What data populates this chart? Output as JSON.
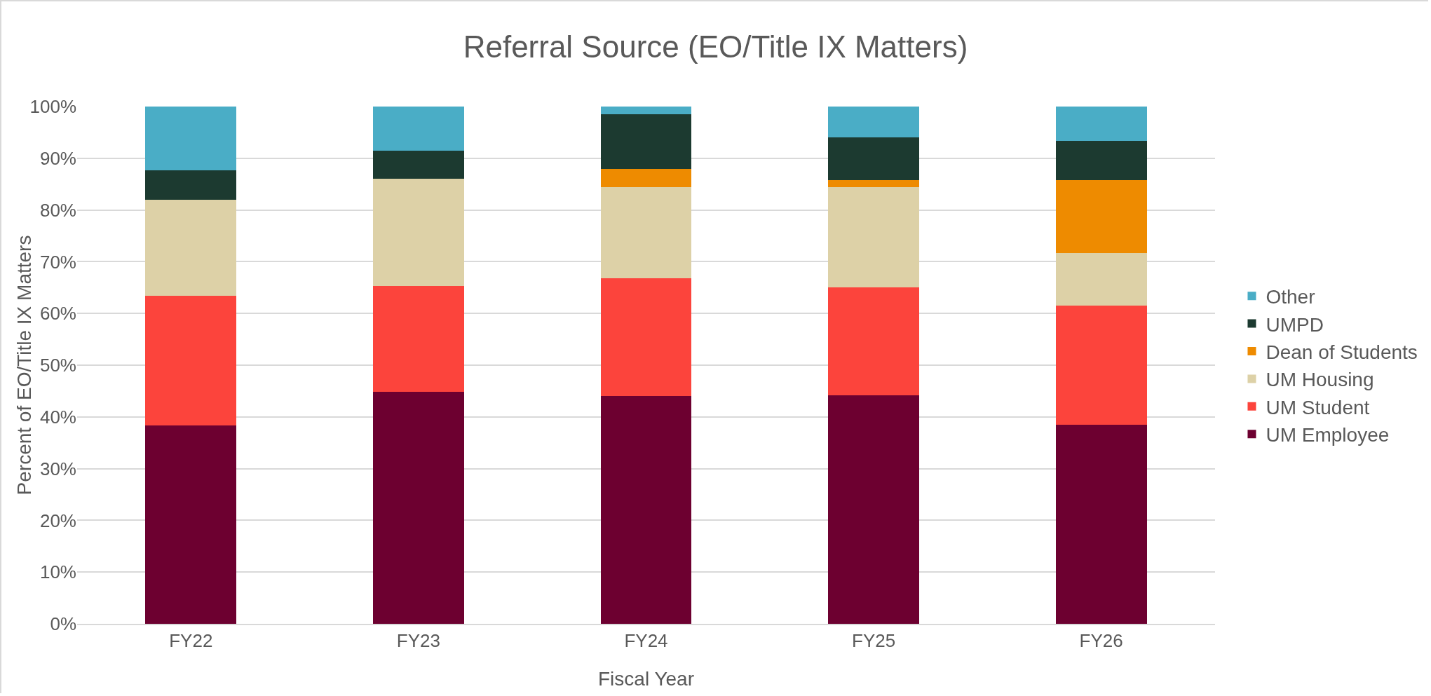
{
  "chart_data": {
    "type": "bar",
    "title": "Referral Source (EO/Title IX Matters)",
    "xlabel": "Fiscal Year",
    "ylabel": "Percent of EO/Title IX Matters",
    "categories": [
      "FY22",
      "FY23",
      "FY24",
      "FY25",
      "FY26"
    ],
    "stacked": true,
    "series": [
      {
        "name": "UM Employee",
        "color": "#6d0030",
        "values": [
          38.3,
          44.8,
          44.0,
          44.2,
          38.5
        ]
      },
      {
        "name": "UM Student",
        "color": "#fc443c",
        "values": [
          25.1,
          20.5,
          22.8,
          20.9,
          23.0
        ]
      },
      {
        "name": "UM Housing",
        "color": "#ddd1a7",
        "values": [
          18.6,
          20.7,
          17.6,
          19.3,
          10.2
        ]
      },
      {
        "name": "Dean of Students",
        "color": "#ee8b00",
        "values": [
          null,
          null,
          3.5,
          1.4,
          14.1
        ]
      },
      {
        "name": "UMPD",
        "color": "#1c3a30",
        "values": [
          5.7,
          5.5,
          10.6,
          8.3,
          7.6
        ]
      },
      {
        "name": "Other",
        "color": "#4aadc6",
        "values": [
          12.3,
          8.5,
          1.5,
          5.9,
          6.6
        ]
      }
    ],
    "ylim": [
      0,
      100
    ],
    "yticks": [
      {
        "value": 0,
        "label": "0%"
      },
      {
        "value": 10,
        "label": "10%"
      },
      {
        "value": 20,
        "label": "20%"
      },
      {
        "value": 30,
        "label": "30%"
      },
      {
        "value": 40,
        "label": "40%"
      },
      {
        "value": 50,
        "label": "50%"
      },
      {
        "value": 60,
        "label": "60%"
      },
      {
        "value": 70,
        "label": "70%"
      },
      {
        "value": 80,
        "label": "80%"
      },
      {
        "value": 90,
        "label": "90%"
      },
      {
        "value": 100,
        "label": "100%"
      }
    ],
    "grid": "y",
    "legend": "right"
  }
}
